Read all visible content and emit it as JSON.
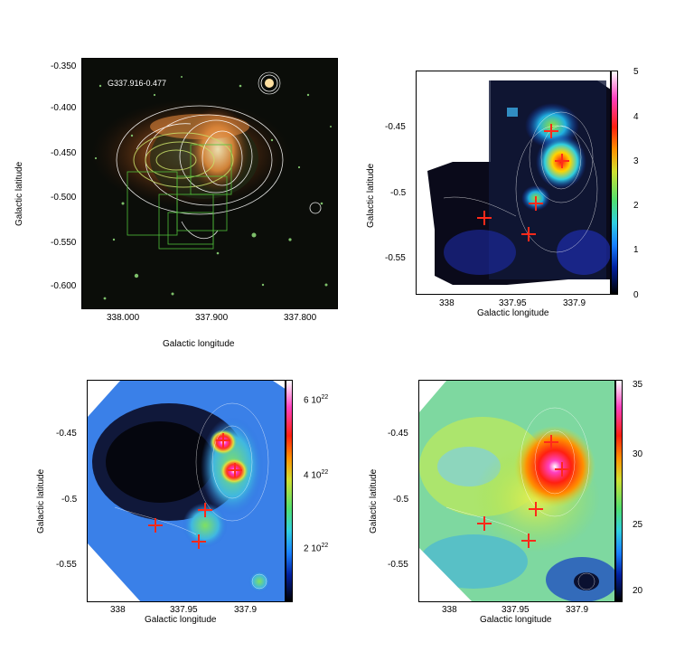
{
  "panel_a": {
    "source_label": "G337.916-0.477",
    "xlabel": "Galactic longitude",
    "ylabel": "Galactic latitude",
    "xticks": [
      "338.000",
      "337.900",
      "337.800"
    ],
    "yticks": [
      "-0.350",
      "-0.400",
      "-0.450",
      "-0.500",
      "-0.550",
      "-0.600"
    ]
  },
  "panel_b": {
    "xlabel": "Galactic longitude",
    "ylabel": "Galactic latitude",
    "xticks": [
      "338",
      "337.95",
      "337.9"
    ],
    "yticks": [
      "-0.45",
      "-0.5",
      "-0.55"
    ],
    "colorbar_ticks": [
      "5",
      "4",
      "3",
      "2",
      "1",
      "0"
    ]
  },
  "panel_c": {
    "xlabel": "Galactic longitude",
    "ylabel": "Galactic latitude",
    "xticks": [
      "338",
      "337.95",
      "337.9"
    ],
    "yticks": [
      "-0.45",
      "-0.5",
      "-0.55"
    ],
    "colorbar_ticks": [
      "6 10",
      "4 10",
      "2 10"
    ],
    "colorbar_exp": "22"
  },
  "panel_d": {
    "xlabel": "Galactic longitude",
    "ylabel": "Galactic latitude",
    "xticks": [
      "338",
      "337.95",
      "337.9"
    ],
    "yticks": [
      "-0.45",
      "-0.5",
      "-0.55"
    ],
    "colorbar_ticks": [
      "35",
      "30",
      "25",
      "20"
    ]
  },
  "colors": {
    "marker": "#ff2a1a",
    "contour": "#ffffff"
  }
}
